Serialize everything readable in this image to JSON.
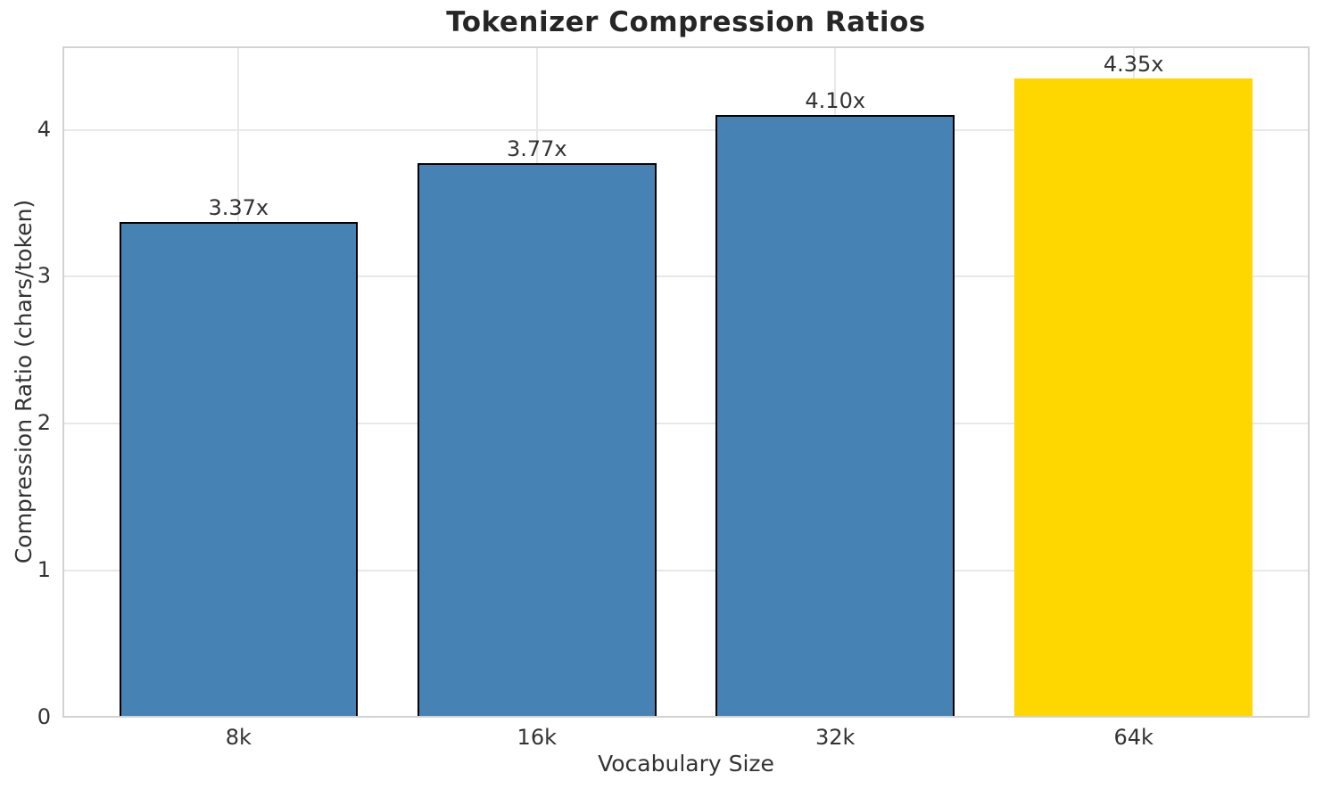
{
  "chart_data": {
    "type": "bar",
    "title": "Tokenizer Compression Ratios",
    "xlabel": "Vocabulary Size",
    "ylabel": "Compression Ratio (chars/token)",
    "categories": [
      "8k",
      "16k",
      "32k",
      "64k"
    ],
    "values": [
      3.37,
      3.77,
      4.1,
      4.35
    ],
    "bar_labels": [
      "3.37x",
      "3.77x",
      "4.10x",
      "4.35x"
    ],
    "yticks": [
      0,
      1,
      2,
      3,
      4
    ],
    "ylim": [
      0,
      4.5675
    ],
    "xlim": [
      -0.59,
      3.59
    ],
    "bar_width": 0.8,
    "grid": true,
    "legend": null,
    "colors": {
      "background": "#ffffff",
      "bar_default": "#4682B4",
      "bar_highlight": "#FFD700",
      "bar_colors": [
        "#4682B4",
        "#4682B4",
        "#4682B4",
        "#FFD700"
      ],
      "bar_edge_colors": [
        "#000000",
        "#000000",
        "#000000",
        "none"
      ],
      "grid": "#e8e8e8",
      "spine": "#d2d2d2",
      "text": "#333333",
      "title_text": "#262626"
    }
  }
}
